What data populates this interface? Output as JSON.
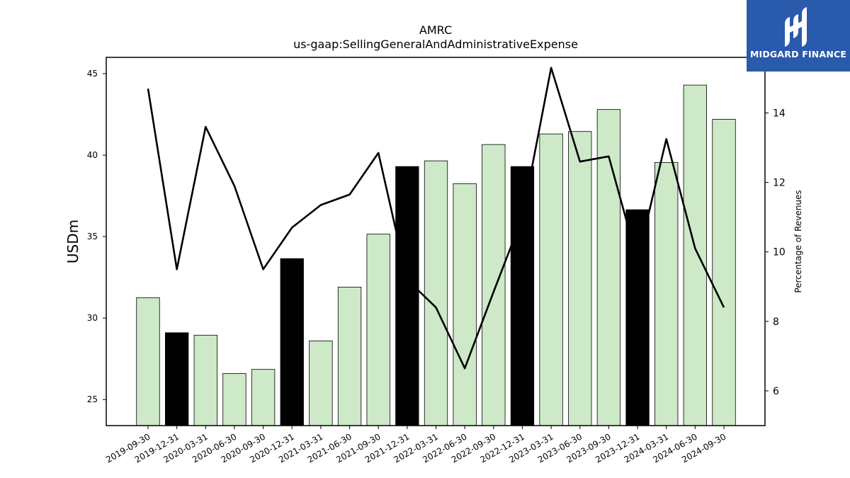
{
  "brand": {
    "name": "MIDGARD FINANCE",
    "color": "#2a5aab"
  },
  "chart_data": {
    "type": "bar",
    "title": "AMRC",
    "subtitle": "us-gaap:SellingGeneralAndAdministrativeExpense",
    "ylabel": "USDm",
    "y2label": "Percentage of Revenues",
    "ylim": [
      23.4,
      46.0
    ],
    "y2lim": [
      5.0,
      15.6
    ],
    "yticks": [
      25,
      30,
      35,
      40,
      45
    ],
    "y2ticks": [
      6,
      8,
      10,
      12,
      14
    ],
    "categories": [
      "2019-09-30",
      "2019-12-31",
      "2020-03-31",
      "2020-06-30",
      "2020-09-30",
      "2020-12-31",
      "2021-03-31",
      "2021-06-30",
      "2021-09-30",
      "2021-12-31",
      "2022-03-31",
      "2022-06-30",
      "2022-09-30",
      "2022-12-31",
      "2023-03-31",
      "2023-06-30",
      "2023-09-30",
      "2023-12-31",
      "2024-03-31",
      "2024-06-30",
      "2024-09-30"
    ],
    "series": [
      {
        "kind": "bar",
        "axis": "left",
        "values": [
          31.25,
          29.1,
          28.95,
          26.6,
          26.85,
          33.65,
          28.6,
          31.9,
          35.15,
          39.3,
          39.65,
          38.25,
          40.65,
          39.3,
          41.3,
          41.45,
          42.8,
          36.65,
          39.55,
          44.3,
          42.2
        ],
        "q4_highlight": [
          false,
          true,
          false,
          false,
          false,
          true,
          false,
          false,
          false,
          true,
          false,
          false,
          false,
          true,
          false,
          false,
          false,
          true,
          false,
          false,
          false
        ]
      },
      {
        "kind": "line",
        "axis": "right",
        "values": [
          14.7,
          9.5,
          13.6,
          11.9,
          9.5,
          10.7,
          11.35,
          11.65,
          12.85,
          9.2,
          8.4,
          6.65,
          8.85,
          11.0,
          15.3,
          12.6,
          12.75,
          9.75,
          13.25,
          10.1,
          8.4
        ]
      }
    ],
    "colors": {
      "bar": "#cde9c8",
      "bar_q4": "#000000",
      "line": "#000000"
    },
    "grid": false,
    "legend": "none"
  }
}
